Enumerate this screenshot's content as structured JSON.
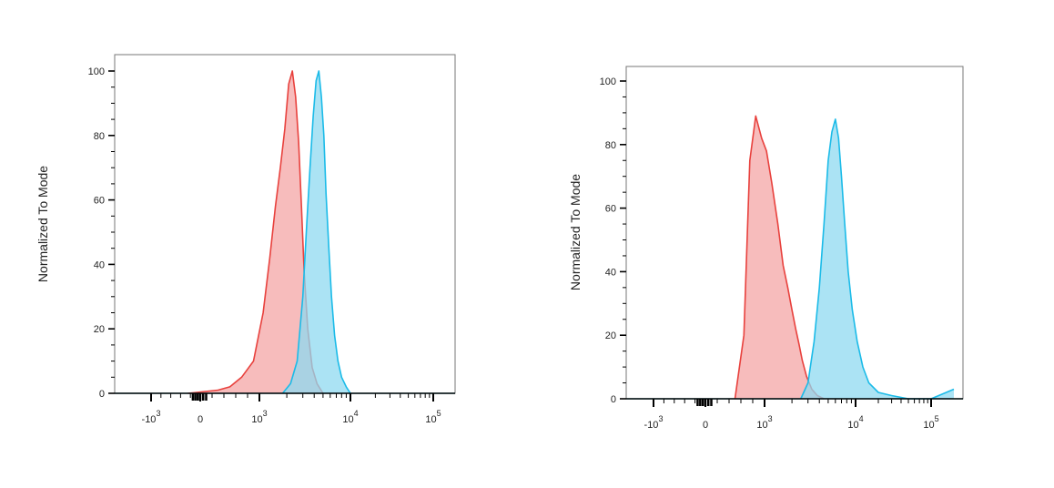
{
  "colors": {
    "red_fill": "#f4a6a6",
    "red_line": "#e8413d",
    "blue_fill": "#8fd9f0",
    "blue_line": "#1bbbe8",
    "axis": "#000000"
  },
  "chart_data": [
    {
      "type": "area",
      "ylabel": "Normalized To Mode",
      "xscale": "biexponential",
      "ylim": [
        0,
        100
      ],
      "yticks": [
        "0",
        "20",
        "40",
        "60",
        "80",
        "100"
      ],
      "xticks": [
        {
          "base": "-10",
          "exp": "3"
        },
        {
          "base": "0",
          "exp": ""
        },
        {
          "base": "10",
          "exp": "3"
        },
        {
          "base": "10",
          "exp": "4"
        },
        {
          "base": "10",
          "exp": "5"
        }
      ],
      "grid": false,
      "series": [
        {
          "color": "red",
          "x": [
            -250,
            300,
            500,
            700,
            900,
            1100,
            1300,
            1500,
            1700,
            1900,
            2100,
            2300,
            2500,
            2700,
            2900,
            3100,
            3400,
            3800,
            4300,
            5000
          ],
          "y": [
            0,
            1,
            2,
            5,
            10,
            25,
            42,
            58,
            70,
            82,
            96,
            100,
            92,
            78,
            58,
            38,
            20,
            8,
            3,
            0
          ]
        },
        {
          "color": "blue",
          "x": [
            1800,
            2200,
            2600,
            3000,
            3300,
            3600,
            3900,
            4200,
            4500,
            4800,
            5100,
            5400,
            5800,
            6200,
            6700,
            7300,
            8000,
            9000,
            10000
          ],
          "y": [
            0,
            3,
            10,
            30,
            52,
            70,
            86,
            97,
            100,
            92,
            80,
            62,
            45,
            30,
            18,
            10,
            5,
            2,
            0
          ]
        }
      ]
    },
    {
      "type": "area",
      "ylabel": "Normalized To Mode",
      "xscale": "biexponential",
      "ylim": [
        0,
        100
      ],
      "yticks": [
        "0",
        "20",
        "40",
        "60",
        "80",
        "100"
      ],
      "xticks": [
        {
          "base": "-10",
          "exp": "3"
        },
        {
          "base": "0",
          "exp": ""
        },
        {
          "base": "10",
          "exp": "3"
        },
        {
          "base": "10",
          "exp": "4"
        },
        {
          "base": "10",
          "exp": "5"
        }
      ],
      "grid": false,
      "series": [
        {
          "color": "red",
          "x": [
            500,
            650,
            750,
            850,
            950,
            1050,
            1200,
            1400,
            1600,
            1800,
            2000,
            2200,
            2400,
            2600,
            2900,
            3300,
            3800,
            4500
          ],
          "y": [
            0,
            20,
            75,
            89,
            82,
            78,
            68,
            55,
            42,
            35,
            28,
            22,
            17,
            12,
            7,
            3,
            1,
            0
          ]
        },
        {
          "color": "blue",
          "x": [
            2500,
            3000,
            3500,
            4000,
            4500,
            5000,
            5500,
            6000,
            6500,
            7000,
            7600,
            8300,
            9200,
            10500,
            12500,
            15000,
            20000,
            30000,
            50000,
            100000,
            200000
          ],
          "y": [
            0,
            5,
            18,
            35,
            55,
            75,
            84,
            88,
            82,
            70,
            55,
            40,
            28,
            18,
            10,
            5,
            2,
            1,
            0,
            0,
            3
          ]
        }
      ]
    }
  ]
}
